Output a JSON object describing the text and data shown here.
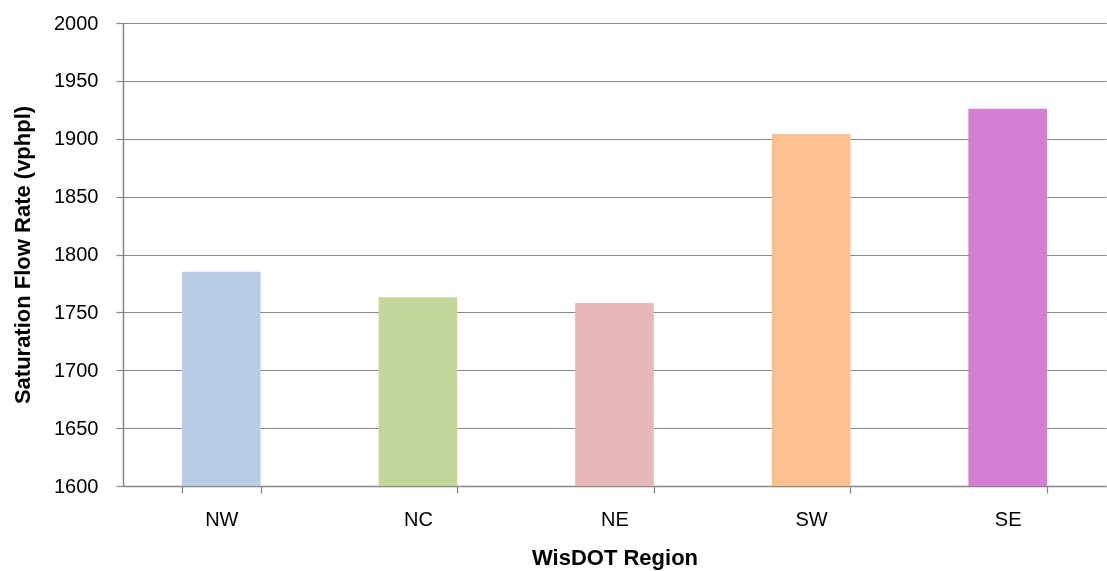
{
  "chart_data": {
    "type": "bar",
    "xlabel": "WisDOT Region",
    "ylabel": "Saturation Flow Rate (vphpl)",
    "categories": [
      "NW",
      "NC",
      "NE",
      "SW",
      "SE"
    ],
    "values": [
      1785,
      1763,
      1758,
      1904,
      1926
    ],
    "colors": [
      "#b9cde5",
      "#c3d69b",
      "#e6b9b8",
      "#fac090",
      "#d47fd4"
    ],
    "ylim": [
      1600,
      2000
    ],
    "yticks": [
      1600,
      1650,
      1700,
      1750,
      1800,
      1850,
      1900,
      1950,
      2000
    ],
    "grid": "y"
  }
}
